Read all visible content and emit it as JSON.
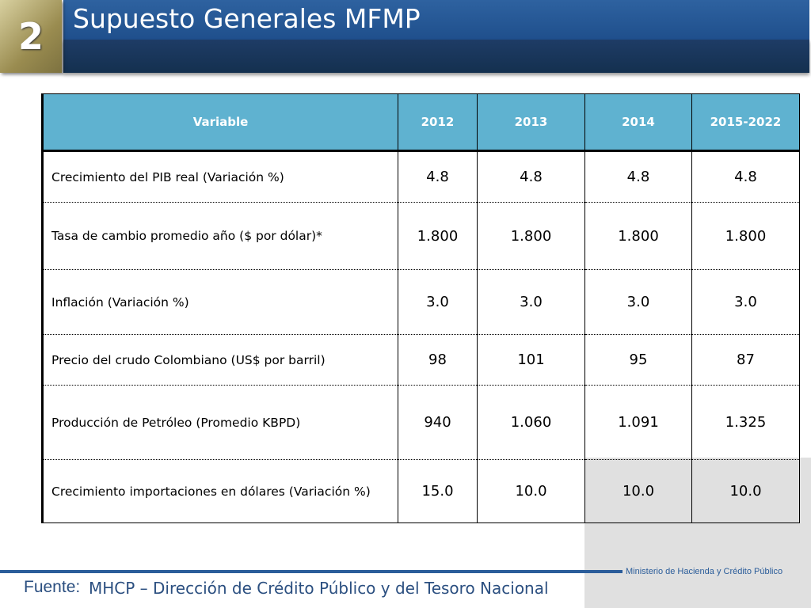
{
  "header": {
    "number": "2",
    "title": "Supuesto Generales MFMP"
  },
  "table": {
    "columns": [
      "Variable",
      "2012",
      "2013",
      "2014",
      "2015-2022"
    ],
    "rows": [
      [
        "Crecimiento del PIB real (Variación %)",
        "4.8",
        "4.8",
        "4.8",
        "4.8"
      ],
      [
        "Tasa de cambio promedio año ($ por dólar)*",
        "1.800",
        "1.800",
        "1.800",
        "1.800"
      ],
      [
        "Inflación (Variación %)",
        "3.0",
        "3.0",
        "3.0",
        "3.0"
      ],
      [
        "Precio del crudo Colombiano (US$ por barril)",
        "98",
        "101",
        "95",
        "87"
      ],
      [
        "Producción de Petróleo (Promedio KBPD)",
        "940",
        "1.060",
        "1.091",
        "1.325"
      ],
      [
        "Crecimiento importaciones en dólares (Variación %)",
        "15.0",
        "10.0",
        "10.0",
        "10.0"
      ]
    ]
  },
  "footer": {
    "logo": "Ministerio de Hacienda y Crédito Público",
    "source_label": "Fuente:",
    "source_text": "MHCP – Dirección de Crédito Público y del Tesoro Nacional"
  }
}
